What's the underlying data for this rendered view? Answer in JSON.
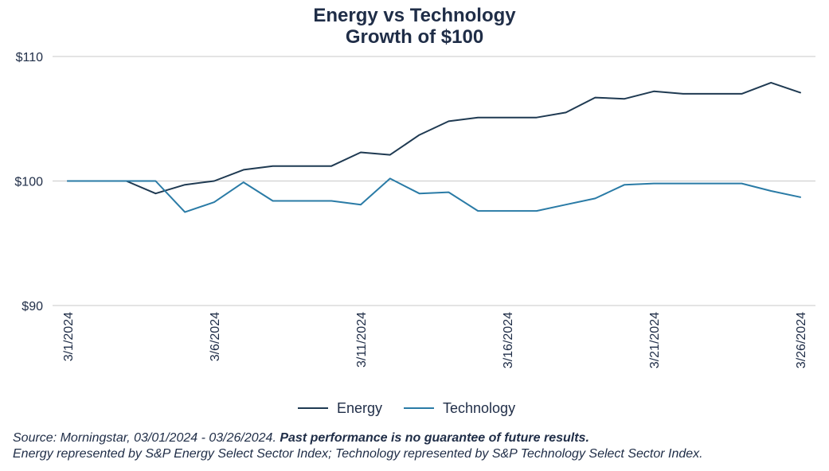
{
  "chart_data": {
    "type": "line",
    "title": "Energy vs Technology",
    "subtitle": "Growth of $100",
    "xlabel": "",
    "ylabel": "",
    "x": [
      "3/1/2024",
      "3/2/2024",
      "3/3/2024",
      "3/4/2024",
      "3/5/2024",
      "3/6/2024",
      "3/7/2024",
      "3/8/2024",
      "3/9/2024",
      "3/10/2024",
      "3/11/2024",
      "3/12/2024",
      "3/13/2024",
      "3/14/2024",
      "3/15/2024",
      "3/16/2024",
      "3/17/2024",
      "3/18/2024",
      "3/19/2024",
      "3/20/2024",
      "3/21/2024",
      "3/22/2024",
      "3/23/2024",
      "3/24/2024",
      "3/25/2024",
      "3/26/2024"
    ],
    "x_tick_labels": [
      "3/1/2024",
      "3/6/2024",
      "3/11/2024",
      "3/16/2024",
      "3/21/2024",
      "3/26/2024"
    ],
    "y_tick_labels": [
      "$110",
      "$100",
      "$90"
    ],
    "y_ticks": [
      110,
      100,
      90
    ],
    "ylim": [
      90,
      110
    ],
    "series": [
      {
        "name": "Energy",
        "color": "#1f3a52",
        "values": [
          100.0,
          100.0,
          100.0,
          99.0,
          99.7,
          100.0,
          100.9,
          101.2,
          101.2,
          101.2,
          102.3,
          102.1,
          103.7,
          104.8,
          105.1,
          105.1,
          105.1,
          105.5,
          106.7,
          106.6,
          107.2,
          107.0,
          107.0,
          107.0,
          107.9,
          107.1
        ]
      },
      {
        "name": "Technology",
        "color": "#2a7ba6",
        "values": [
          100.0,
          100.0,
          100.0,
          100.0,
          97.5,
          98.3,
          99.9,
          98.4,
          98.4,
          98.4,
          98.1,
          100.2,
          99.0,
          99.1,
          97.6,
          97.6,
          97.6,
          98.1,
          98.6,
          99.7,
          99.8,
          99.8,
          99.8,
          99.8,
          99.2,
          98.7
        ]
      }
    ],
    "grid": "horizontal",
    "legend": "bottom-center"
  },
  "footer": {
    "source_prefix": "Source: Morningstar, 03/01/2024 - 03/26/2024. ",
    "disclaimer": "Past performance is no guarantee of future results.",
    "note": "Energy represented by S&P Energy Select Sector Index; Technology represented by S&P Technology Select Sector Index."
  }
}
